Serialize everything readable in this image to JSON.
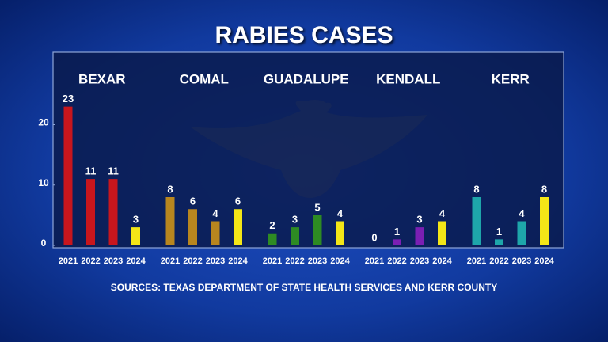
{
  "chart_data": {
    "type": "grouped-bar",
    "title": "RABIES CASES",
    "source": "SOURCES: TEXAS DEPARTMENT OF STATE HEALTH SERVICES AND KERR COUNTY",
    "ylim": [
      0,
      32
    ],
    "yticks": [
      0,
      10,
      20
    ],
    "groups": [
      {
        "name": "BEXAR",
        "categories": [
          "2021",
          "2022",
          "2023",
          "2024"
        ],
        "values": [
          23,
          11,
          11,
          3
        ],
        "colors": [
          "#c8161d",
          "#c8161d",
          "#c8161d",
          "#f4e617"
        ]
      },
      {
        "name": "COMAL",
        "categories": [
          "2021",
          "2022",
          "2023",
          "2024"
        ],
        "values": [
          8,
          6,
          4,
          6
        ],
        "colors": [
          "#b8861f",
          "#b8861f",
          "#b8861f",
          "#f4e617"
        ]
      },
      {
        "name": "GUADALUPE",
        "categories": [
          "2021",
          "2022",
          "2023",
          "2024"
        ],
        "values": [
          2,
          3,
          5,
          4
        ],
        "colors": [
          "#2e8b23",
          "#2e8b23",
          "#2e8b23",
          "#f4e617"
        ]
      },
      {
        "name": "KENDALL",
        "categories": [
          "2021",
          "2022",
          "2023",
          "2024"
        ],
        "values": [
          0,
          1,
          3,
          4
        ],
        "colors": [
          "#7b1fb3",
          "#7b1fb3",
          "#7b1fb3",
          "#f4e617"
        ]
      },
      {
        "name": "KERR",
        "categories": [
          "2021",
          "2022",
          "2023",
          "2024"
        ],
        "values": [
          8,
          1,
          4,
          8
        ],
        "colors": [
          "#1ea6aa",
          "#1ea6aa",
          "#1ea6aa",
          "#f4e617"
        ]
      }
    ]
  }
}
